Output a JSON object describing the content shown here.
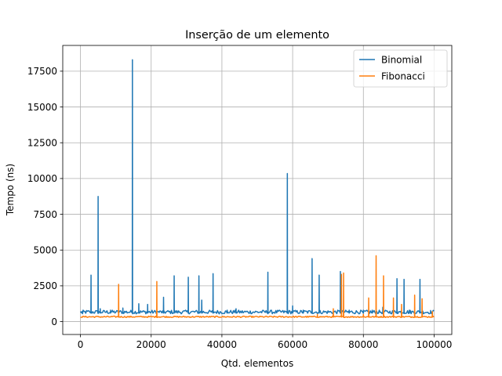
{
  "chart_data": {
    "type": "line",
    "title": "Inserção de um elemento",
    "xlabel": "Qtd. elementos",
    "ylabel": "Tempo (ns)",
    "xlim": [
      -5000,
      105000
    ],
    "ylim": [
      -900,
      19300
    ],
    "xticks": [
      0,
      20000,
      40000,
      60000,
      80000,
      100000
    ],
    "yticks": [
      0,
      2500,
      5000,
      7500,
      10000,
      12500,
      15000,
      17500
    ],
    "grid": true,
    "legend_position": "top-right",
    "series": [
      {
        "name": "Binomial",
        "color": "#1f77b4",
        "baseline": 600,
        "spikes": [
          [
            600,
            550
          ],
          [
            3000,
            3250
          ],
          [
            5000,
            8750
          ],
          [
            5600,
            900
          ],
          [
            8500,
            800
          ],
          [
            12000,
            950
          ],
          [
            14700,
            18300
          ],
          [
            16500,
            1250
          ],
          [
            19000,
            1200
          ],
          [
            23500,
            1700
          ],
          [
            26500,
            3200
          ],
          [
            30500,
            3100
          ],
          [
            33500,
            3200
          ],
          [
            34300,
            1500
          ],
          [
            37500,
            3350
          ],
          [
            41500,
            800
          ],
          [
            44000,
            900
          ],
          [
            53000,
            3450
          ],
          [
            58500,
            10350
          ],
          [
            60000,
            1100
          ],
          [
            63000,
            800
          ],
          [
            65500,
            4400
          ],
          [
            67500,
            3250
          ],
          [
            73500,
            3500
          ],
          [
            76000,
            800
          ],
          [
            80000,
            700
          ],
          [
            82500,
            800
          ],
          [
            85500,
            1000
          ],
          [
            89500,
            3000
          ],
          [
            91500,
            2950
          ],
          [
            93000,
            800
          ],
          [
            96000,
            2950
          ],
          [
            99000,
            700
          ]
        ]
      },
      {
        "name": "Fibonacci",
        "color": "#ff7f0e",
        "baseline": 320,
        "spikes": [
          [
            600,
            350
          ],
          [
            10800,
            2600
          ],
          [
            21600,
            2800
          ],
          [
            67000,
            500
          ],
          [
            71500,
            900
          ],
          [
            73800,
            3300
          ],
          [
            74400,
            3400
          ],
          [
            80000,
            500
          ],
          [
            81500,
            1650
          ],
          [
            83600,
            4600
          ],
          [
            85700,
            3200
          ],
          [
            88500,
            1650
          ],
          [
            90800,
            1200
          ],
          [
            94500,
            1850
          ],
          [
            96600,
            1600
          ],
          [
            99500,
            700
          ]
        ]
      }
    ]
  }
}
